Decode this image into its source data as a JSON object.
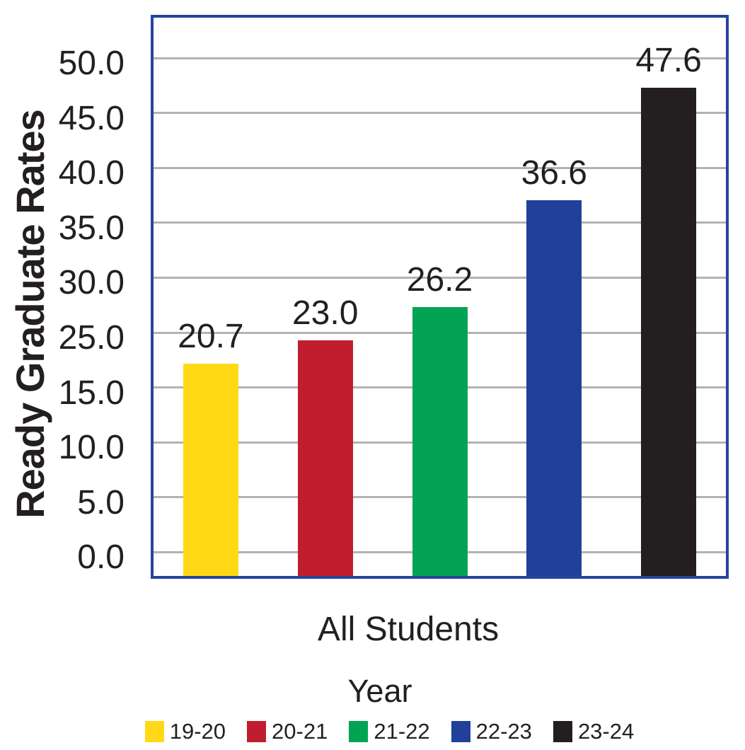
{
  "chart_data": {
    "type": "bar",
    "title": "",
    "ylabel": "Ready Graduate Rates",
    "x_category_label": "All Students",
    "xlabel": "Year",
    "categories": [
      "19-20",
      "20-21",
      "21-22",
      "22-23",
      "23-24"
    ],
    "values": [
      20.7,
      23.0,
      26.2,
      36.6,
      47.6
    ],
    "value_labels": [
      "20.7",
      "23.0",
      "26.2",
      "36.6",
      "47.6"
    ],
    "bar_colors": [
      "#ffd916",
      "#c01e2e",
      "#02a453",
      "#21409a",
      "#231f20"
    ],
    "y_tick_labels": [
      "50.0",
      "45.0",
      "40.0",
      "35.0",
      "30.0",
      "25.0",
      "15.0",
      "10.0",
      "5.0",
      "0.0"
    ],
    "ylim": [
      0,
      54
    ],
    "grid": true,
    "legend_position": "bottom",
    "legend": [
      {
        "label": "19-20",
        "color": "#ffd916"
      },
      {
        "label": "20-21",
        "color": "#c01e2e"
      },
      {
        "label": "21-22",
        "color": "#02a453"
      },
      {
        "label": "22-23",
        "color": "#21409a"
      },
      {
        "label": "23-24",
        "color": "#231f20"
      }
    ]
  },
  "colors": {
    "frame": "#24449e",
    "gridline": "#b1b3b6",
    "text": "#231f20",
    "background": "#ffffff"
  }
}
